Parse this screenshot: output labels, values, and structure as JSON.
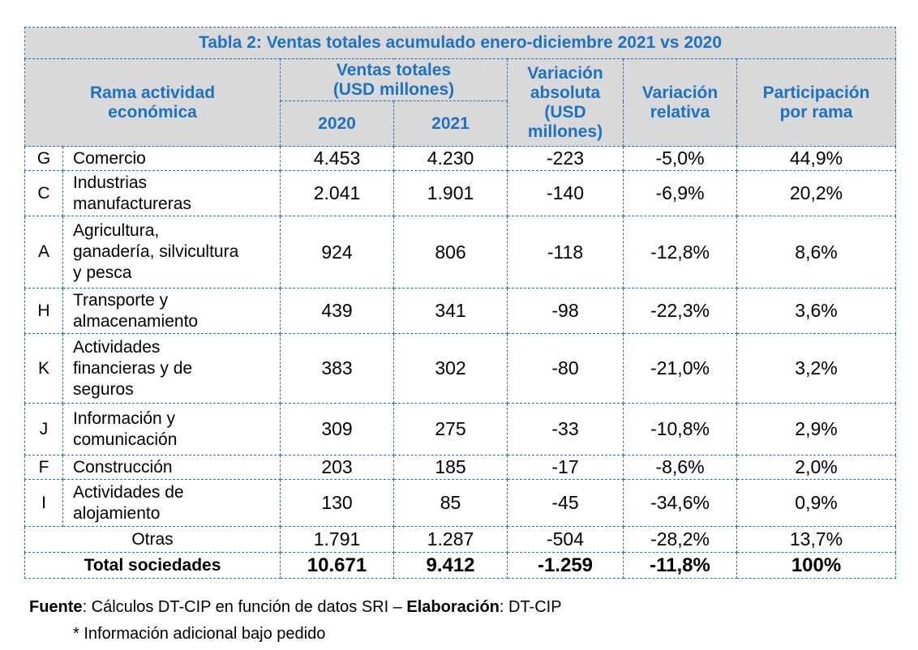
{
  "table": {
    "title": "Tabla 2: Ventas totales acumulado enero-diciembre 2021 vs 2020",
    "headers": {
      "rama_line1": "Rama actividad",
      "rama_line2": "económica",
      "ventas_line1": "Ventas totales",
      "ventas_line2": "(USD millones)",
      "year_2020": "2020",
      "year_2021": "2021",
      "var_abs_line1": "Variación",
      "var_abs_line2": "absoluta",
      "var_abs_line3": "(USD",
      "var_abs_line4": "millones)",
      "var_rel_line1": "Variación",
      "var_rel_line2": "relativa",
      "part_line1": "Participación",
      "part_line2": "por rama"
    },
    "rows": [
      {
        "code": "G",
        "name_line1": "Comercio",
        "name_line2": "",
        "name_line3": "",
        "v2020": "4.453",
        "v2021": "4.230",
        "var_abs": "-223",
        "var_rel": "-5,0%",
        "part": "44,9%"
      },
      {
        "code": "C",
        "name_line1": "Industrias",
        "name_line2": "manufactureras",
        "name_line3": "",
        "v2020": "2.041",
        "v2021": "1.901",
        "var_abs": "-140",
        "var_rel": "-6,9%",
        "part": "20,2%"
      },
      {
        "code": "A",
        "name_line1": "Agricultura,",
        "name_line2": "ganadería, silvicultura",
        "name_line3": "y pesca",
        "v2020": "924",
        "v2021": "806",
        "var_abs": "-118",
        "var_rel": "-12,8%",
        "part": "8,6%"
      },
      {
        "code": "H",
        "name_line1": "Transporte y",
        "name_line2": "almacenamiento",
        "name_line3": "",
        "v2020": "439",
        "v2021": "341",
        "var_abs": "-98",
        "var_rel": "-22,3%",
        "part": "3,6%"
      },
      {
        "code": "K",
        "name_line1": "Actividades",
        "name_line2": "financieras y de",
        "name_line3": "seguros",
        "v2020": "383",
        "v2021": "302",
        "var_abs": "-80",
        "var_rel": "-21,0%",
        "part": "3,2%"
      },
      {
        "code": "J",
        "name_line1": "Información y",
        "name_line2": "comunicación",
        "name_line3": "",
        "v2020": "309",
        "v2021": "275",
        "var_abs": "-33",
        "var_rel": "-10,8%",
        "part": "2,9%"
      },
      {
        "code": "F",
        "name_line1": "Construcción",
        "name_line2": "",
        "name_line3": "",
        "v2020": "203",
        "v2021": "185",
        "var_abs": "-17",
        "var_rel": "-8,6%",
        "part": "2,0%"
      },
      {
        "code": "I",
        "name_line1": "Actividades de",
        "name_line2": "alojamiento",
        "name_line3": "",
        "v2020": "130",
        "v2021": "85",
        "var_abs": "-45",
        "var_rel": "-34,6%",
        "part": "0,9%"
      }
    ],
    "otras": {
      "label": "Otras",
      "v2020": "1.791",
      "v2021": "1.287",
      "var_abs": "-504",
      "var_rel": "-28,2%",
      "part": "13,7%"
    },
    "total": {
      "label": "Total sociedades",
      "v2020": "10.671",
      "v2021": "9.412",
      "var_abs": "-1.259",
      "var_rel": "-11,8%",
      "part": "100%"
    }
  },
  "footer": {
    "fuente_label": "Fuente",
    "fuente_text": ": Cálculos DT-CIP en función de datos SRI – ",
    "elaboracion_label": "Elaboración",
    "elaboracion_text": ": DT-CIP",
    "note": "* Información adicional bajo pedido"
  }
}
